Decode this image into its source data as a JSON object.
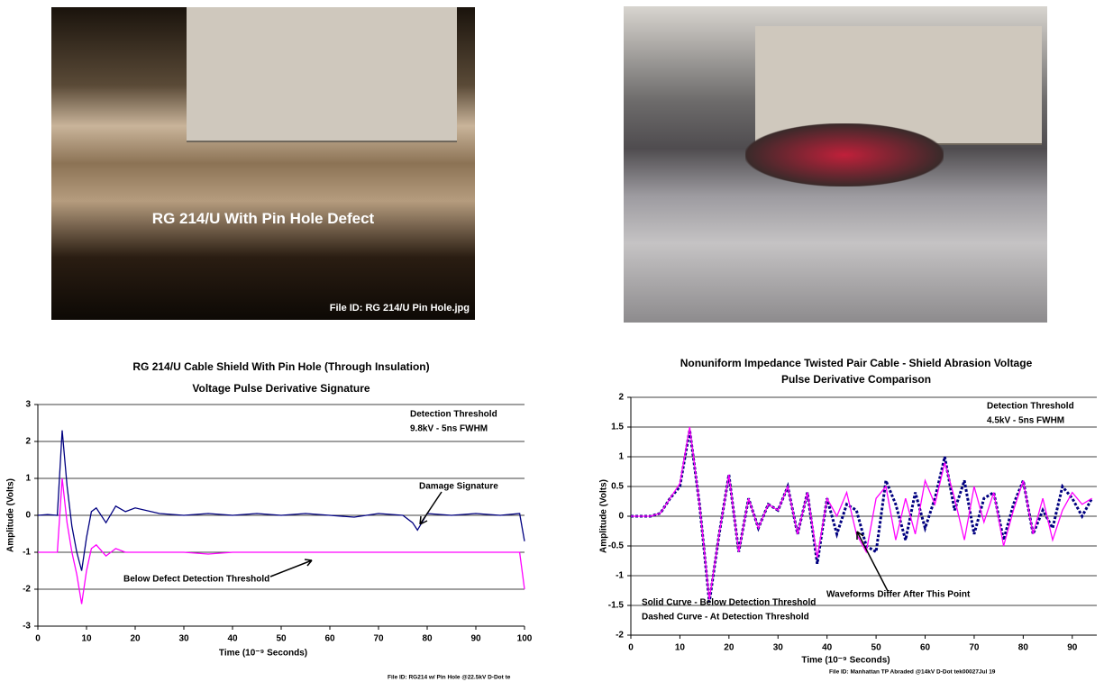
{
  "photo_1": {
    "caption": "RG 214/U With Pin Hole Defect",
    "file_id": "File ID: RG 214/U Pin Hole.jpg"
  },
  "chart_data": [
    {
      "type": "line",
      "title": "RG 214/U Cable Shield With Pin Hole (Through Insulation)",
      "subtitle": "Voltage Pulse Derivative Signature",
      "x_label": "Time (10⁻⁹ Seconds)",
      "y_label": "Amplitude (Volts)",
      "x": [
        0,
        2,
        4,
        5,
        6,
        7,
        8,
        9,
        10,
        11,
        12,
        14,
        16,
        18,
        20,
        25,
        30,
        35,
        40,
        45,
        50,
        55,
        60,
        65,
        70,
        75,
        77,
        78,
        80,
        85,
        90,
        95,
        99,
        100
      ],
      "series": [
        {
          "color": "#000080",
          "dashed": false,
          "values": [
            0,
            0.02,
            0,
            2.3,
            0.8,
            -0.3,
            -1.0,
            -1.5,
            -0.6,
            0.1,
            0.2,
            -0.2,
            0.25,
            0.1,
            0.2,
            0.05,
            0,
            0.05,
            0,
            0.05,
            0,
            0.05,
            0,
            -0.05,
            0.05,
            0,
            -0.2,
            -0.4,
            0.05,
            0,
            0.05,
            0,
            0.05,
            -0.7
          ]
        },
        {
          "color": "#ff00ff",
          "dashed": false,
          "values": [
            -1,
            -1,
            -1,
            1.0,
            -0.2,
            -1.0,
            -1.6,
            -2.4,
            -1.5,
            -0.9,
            -0.8,
            -1.1,
            -0.9,
            -1.0,
            -1.0,
            -1.0,
            -1.0,
            -1.05,
            -1.0,
            -1.0,
            -1.0,
            -1.0,
            -1.0,
            -1.0,
            -1.0,
            -1.0,
            -1.0,
            -1.0,
            -1.0,
            -1.0,
            -1.0,
            -1.0,
            -1.0,
            -2.0
          ]
        }
      ],
      "xlim": [
        0,
        100
      ],
      "xticks": [
        0,
        10,
        20,
        30,
        40,
        50,
        60,
        70,
        80,
        90,
        100
      ],
      "ylim": [
        -3,
        3
      ],
      "yticks": [
        -3,
        -2,
        -1,
        0,
        1,
        2,
        3
      ],
      "grid": true,
      "annotations": [
        "Detection Threshold",
        "9.8kV - 5ns FWHM",
        "Damage Signature",
        "Below Defect Detection Threshold"
      ],
      "file_id": "File ID: RG214 w/ Pin Hole @22.5kV D-Dot te"
    },
    {
      "type": "line",
      "title": "Nonuniform Impedance Twisted Pair Cable - Shield Abrasion Voltage",
      "subtitle": "Pulse Derivative Comparison",
      "x_label": "Time (10⁻⁹ Seconds)",
      "y_label": "Amplitude (Volts)",
      "x": [
        0,
        2,
        4,
        6,
        8,
        10,
        12,
        14,
        16,
        18,
        20,
        22,
        24,
        26,
        28,
        30,
        32,
        34,
        36,
        38,
        40,
        42,
        44,
        46,
        48,
        50,
        52,
        54,
        56,
        58,
        60,
        62,
        64,
        66,
        68,
        70,
        72,
        74,
        76,
        78,
        80,
        82,
        84,
        86,
        88,
        90,
        92,
        94
      ],
      "series": [
        {
          "color": "#000080",
          "dashed": true,
          "values": [
            0,
            0,
            0,
            0.05,
            0.3,
            0.5,
            1.45,
            0.2,
            -1.45,
            -0.3,
            0.7,
            -0.6,
            0.3,
            -0.2,
            0.2,
            0.1,
            0.5,
            -0.3,
            0.4,
            -0.8,
            0.3,
            -0.3,
            0.2,
            0.1,
            -0.5,
            -0.6,
            0.6,
            0.2,
            -0.4,
            0.4,
            -0.2,
            0.3,
            1.0,
            0.1,
            0.6,
            -0.3,
            0.3,
            0.4,
            -0.4,
            0.2,
            0.6,
            -0.3,
            0.1,
            -0.2,
            0.5,
            0.3,
            0,
            0.3
          ]
        },
        {
          "color": "#ff00ff",
          "dashed": false,
          "values": [
            0,
            0,
            0,
            0.05,
            0.3,
            0.55,
            1.5,
            0.2,
            -1.4,
            -0.3,
            0.7,
            -0.6,
            0.3,
            -0.2,
            0.2,
            0.1,
            0.5,
            -0.3,
            0.4,
            -0.7,
            0.3,
            0,
            0.4,
            -0.3,
            -0.6,
            0.3,
            0.5,
            -0.4,
            0.3,
            -0.3,
            0.6,
            0.2,
            0.9,
            0.3,
            -0.4,
            0.5,
            -0.1,
            0.4,
            -0.5,
            0.1,
            0.6,
            -0.3,
            0.3,
            -0.4,
            0.1,
            0.4,
            0.2,
            0.3
          ]
        }
      ],
      "xlim": [
        0,
        95
      ],
      "xticks": [
        0,
        10,
        20,
        30,
        40,
        50,
        60,
        70,
        80,
        90
      ],
      "ylim": [
        -2,
        2
      ],
      "yticks": [
        -2,
        -1.5,
        -1,
        -0.5,
        0,
        0.5,
        1,
        1.5,
        2
      ],
      "grid": true,
      "annotations": [
        "Detection Threshold",
        "4.5kV - 5ns FWHM",
        "Waveforms Differ After This Point",
        "Solid Curve - Below Detection Threshold",
        "Dashed Curve - At Detection Threshold"
      ],
      "file_id": "File ID: Manhattan TP Abraded @14kV  D-Dot tek00027Jul 19"
    }
  ]
}
